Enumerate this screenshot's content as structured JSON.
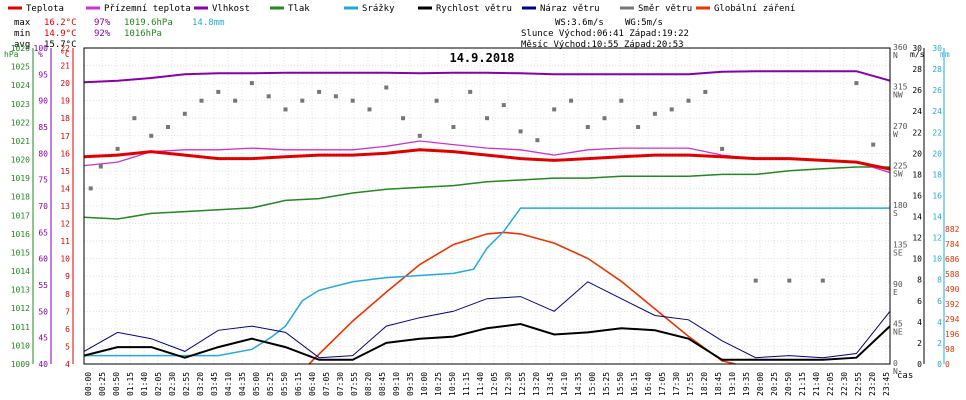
{
  "chart_data": {
    "type": "line",
    "title": "14.9.2018",
    "xlabel": "čas",
    "legend": {
      "placement": "top",
      "entries": [
        {
          "name": "Teplota",
          "color": "#e00000"
        },
        {
          "name": "Přízemní teplota",
          "color": "#cc33cc"
        },
        {
          "name": "Vlhkost",
          "color": "#8800aa"
        },
        {
          "name": "Tlak",
          "color": "#228822"
        },
        {
          "name": "Srážky",
          "color": "#22aadd"
        },
        {
          "name": "Rychlost větru",
          "color": "#000000"
        },
        {
          "name": "Náraz větru",
          "color": "#000088"
        },
        {
          "name": "Směr větru",
          "color": "#777777"
        },
        {
          "name": "Globální záření",
          "color": "#ee3300"
        }
      ]
    },
    "stats": {
      "max_label": "max",
      "max_temp": "16.2°C",
      "max_hum": "97%",
      "max_press": "1019.6hPa",
      "max_rain": "14.8mm",
      "min_label": "min",
      "min_temp": "14.9°C",
      "min_hum": "92%",
      "min_press": "1016hPa",
      "avg_label": "avg",
      "avg_temp": "15.7°C",
      "ws": "WS:3.6m/s",
      "wg": "WG:5m/s",
      "sun": "Slunce Východ:06:41   Západ:19:22",
      "moon": "Měsíc  Východ:10:55   Západ:20:53"
    },
    "axes": {
      "pressure": {
        "unit": "hPa",
        "color": "#228822",
        "ticks": [
          1009,
          1010,
          1011,
          1012,
          1013,
          1014,
          1015,
          1016,
          1017,
          1018,
          1019,
          1020,
          1021,
          1022,
          1023,
          1024,
          1025,
          1026
        ]
      },
      "humidity": {
        "unit": "%",
        "color": "#8800aa",
        "ticks": [
          40,
          45,
          50,
          55,
          60,
          65,
          70,
          75,
          80,
          85,
          90,
          95,
          100
        ]
      },
      "temperature": {
        "unit": "°C",
        "color": "#e00000",
        "ticks": [
          4,
          5,
          6,
          7,
          8,
          9,
          10,
          11,
          12,
          13,
          14,
          15,
          16,
          17,
          18,
          19,
          20,
          21,
          22
        ]
      },
      "direction": {
        "unit": "°",
        "ticks": [
          {
            "v": "0",
            "l": "N"
          },
          {
            "v": "45",
            "l": "NE"
          },
          {
            "v": "90",
            "l": "E"
          },
          {
            "v": "135",
            "l": "SE"
          },
          {
            "v": "180",
            "l": "S"
          },
          {
            "v": "225",
            "l": "SW"
          },
          {
            "v": "270",
            "l": "W"
          },
          {
            "v": "315",
            "l": "NW"
          },
          {
            "v": "360",
            "l": "N"
          }
        ]
      },
      "wind": {
        "unit": "m/s",
        "ticks": [
          0,
          2,
          4,
          6,
          8,
          10,
          12,
          14,
          16,
          18,
          20,
          22,
          24,
          26,
          28,
          30
        ]
      },
      "rain": {
        "unit": "mm",
        "color": "#22aadd",
        "ticks": [
          0,
          2,
          4,
          6,
          8,
          10,
          12,
          14,
          16,
          18,
          20,
          22,
          24,
          26,
          28,
          30
        ]
      },
      "radiation": {
        "unit": "W/m2",
        "color": "#ee3300",
        "ticks": [
          0,
          98,
          196,
          294,
          392,
          490,
          588,
          686,
          784,
          882
        ]
      }
    },
    "x_ticks": [
      "00:00",
      "00:25",
      "00:50",
      "01:15",
      "01:40",
      "02:05",
      "02:30",
      "02:55",
      "03:20",
      "03:45",
      "04:10",
      "04:35",
      "05:00",
      "05:25",
      "05:50",
      "06:15",
      "06:40",
      "07:05",
      "07:30",
      "07:55",
      "08:20",
      "08:45",
      "09:10",
      "09:35",
      "10:00",
      "10:25",
      "10:50",
      "11:15",
      "11:40",
      "12:05",
      "12:30",
      "12:55",
      "13:20",
      "13:45",
      "14:10",
      "14:35",
      "15:00",
      "15:25",
      "15:50",
      "16:15",
      "16:40",
      "17:05",
      "17:30",
      "17:55",
      "18:20",
      "18:45",
      "19:10",
      "19:35",
      "20:00",
      "20:25",
      "20:50",
      "21:15",
      "21:40",
      "22:05",
      "22:30",
      "22:55",
      "23:20",
      "23:45"
    ],
    "series": [
      {
        "name": "Teplota",
        "unit": "°C",
        "x": [
          0,
          1,
          2,
          3,
          4,
          5,
          6,
          7,
          8,
          9,
          10,
          11,
          12,
          13,
          14,
          15,
          16,
          17,
          18,
          19,
          20,
          21,
          22,
          23,
          24
        ],
        "y": [
          15.8,
          15.9,
          16.1,
          15.9,
          15.7,
          15.7,
          15.8,
          15.9,
          15.9,
          16.0,
          16.2,
          16.1,
          15.9,
          15.7,
          15.6,
          15.7,
          15.8,
          15.9,
          15.9,
          15.8,
          15.7,
          15.7,
          15.6,
          15.5,
          15.1
        ]
      },
      {
        "name": "Přízemní teplota",
        "unit": "°C",
        "x": [
          0,
          1,
          2,
          3,
          4,
          5,
          6,
          7,
          8,
          9,
          10,
          11,
          12,
          13,
          14,
          15,
          16,
          17,
          18,
          19,
          20,
          21,
          22,
          23,
          24
        ],
        "y": [
          15.3,
          15.5,
          16.1,
          16.2,
          16.2,
          16.3,
          16.2,
          16.2,
          16.2,
          16.4,
          16.7,
          16.5,
          16.3,
          16.2,
          15.9,
          16.2,
          16.3,
          16.3,
          16.3,
          15.9,
          15.7,
          15.7,
          15.6,
          15.5,
          14.9
        ]
      },
      {
        "name": "Vlhkost",
        "unit": "%",
        "x": [
          0,
          1,
          2,
          3,
          4,
          5,
          6,
          7,
          8,
          9,
          10,
          11,
          12,
          13,
          14,
          15,
          16,
          17,
          18,
          19,
          20,
          21,
          22,
          23,
          24
        ],
        "y": [
          93.5,
          93.8,
          94.3,
          95.0,
          95.2,
          95.2,
          95.3,
          95.3,
          95.3,
          95.3,
          95.2,
          95.3,
          95.3,
          95.2,
          95.0,
          95.0,
          95.0,
          95.0,
          95.0,
          95.5,
          95.6,
          95.6,
          95.6,
          95.6,
          93.8
        ]
      },
      {
        "name": "Tlak",
        "unit": "hPa",
        "x": [
          0,
          1,
          2,
          3,
          4,
          5,
          6,
          7,
          8,
          9,
          10,
          11,
          12,
          13,
          14,
          15,
          16,
          17,
          18,
          19,
          20,
          21,
          22,
          23,
          24
        ],
        "y": [
          1016.9,
          1016.8,
          1017.1,
          1017.2,
          1017.3,
          1017.4,
          1017.8,
          1017.9,
          1018.2,
          1018.4,
          1018.5,
          1018.6,
          1018.8,
          1018.9,
          1019.0,
          1019.0,
          1019.1,
          1019.1,
          1019.1,
          1019.2,
          1019.2,
          1019.4,
          1019.5,
          1019.6,
          1019.6
        ]
      },
      {
        "name": "Srážky",
        "unit": "mm",
        "x": [
          0,
          2,
          4,
          5,
          5.6,
          6,
          6.5,
          7,
          8,
          9,
          10,
          11,
          11.6,
          12,
          12.5,
          13,
          14,
          24
        ],
        "y": [
          0.8,
          0.8,
          0.8,
          1.4,
          2.6,
          3.6,
          6.0,
          7.0,
          7.8,
          8.2,
          8.4,
          8.6,
          9.0,
          11.0,
          12.6,
          14.8,
          14.8,
          14.8
        ]
      },
      {
        "name": "Rychlost větru",
        "unit": "m/s",
        "x": [
          0,
          1,
          2,
          3,
          4,
          5,
          6,
          7,
          8,
          9,
          10,
          11,
          12,
          13,
          14,
          15,
          16,
          17,
          18,
          19,
          20,
          21,
          22,
          23,
          24
        ],
        "y": [
          0.8,
          1.6,
          1.6,
          0.6,
          1.6,
          2.4,
          1.6,
          0.4,
          0.4,
          2.0,
          2.4,
          2.6,
          3.4,
          3.8,
          2.8,
          3.0,
          3.4,
          3.2,
          2.4,
          0.4,
          0.4,
          0.4,
          0.4,
          0.6,
          3.6
        ]
      },
      {
        "name": "Náraz větru",
        "unit": "m/s",
        "x": [
          0,
          1,
          2,
          3,
          4,
          5,
          6,
          7,
          8,
          9,
          10,
          11,
          12,
          13,
          14,
          15,
          16,
          17,
          18,
          19,
          20,
          21,
          22,
          23,
          24
        ],
        "y": [
          1.2,
          3.0,
          2.4,
          1.2,
          3.2,
          3.6,
          3.0,
          0.6,
          0.8,
          3.6,
          4.4,
          5.0,
          6.2,
          6.4,
          5.0,
          7.8,
          6.2,
          4.6,
          4.2,
          2.2,
          0.6,
          0.8,
          0.6,
          1.0,
          5.0
        ]
      },
      {
        "name": "Globální záření",
        "unit": "W/m2",
        "x": [
          6.7,
          8,
          9,
          10,
          11,
          12,
          12.5,
          13,
          14,
          15,
          16,
          17,
          18,
          19,
          19.4
        ],
        "y": [
          0,
          280,
          470,
          650,
          780,
          850,
          860,
          850,
          790,
          690,
          540,
          360,
          180,
          20,
          0
        ]
      },
      {
        "name": "Směr větru",
        "unit": "°",
        "x": [
          0.2,
          0.5,
          1,
          1.5,
          2,
          2.5,
          3,
          3.5,
          4,
          4.5,
          5,
          5.5,
          6,
          6.5,
          7,
          7.5,
          8,
          8.5,
          9,
          9.5,
          10,
          10.5,
          11,
          11.5,
          12,
          12.5,
          13,
          13.5,
          14,
          14.5,
          15,
          15.5,
          16,
          16.5,
          17,
          17.5,
          18,
          18.5,
          19,
          20,
          21,
          22,
          23,
          23.5
        ],
        "y": [
          200,
          225,
          245,
          280,
          260,
          270,
          285,
          300,
          310,
          300,
          320,
          305,
          290,
          300,
          310,
          305,
          300,
          290,
          315,
          280,
          260,
          300,
          270,
          310,
          280,
          295,
          265,
          255,
          290,
          300,
          270,
          280,
          300,
          270,
          285,
          290,
          300,
          310,
          245,
          95,
          95,
          95,
          320,
          250
        ]
      }
    ]
  }
}
